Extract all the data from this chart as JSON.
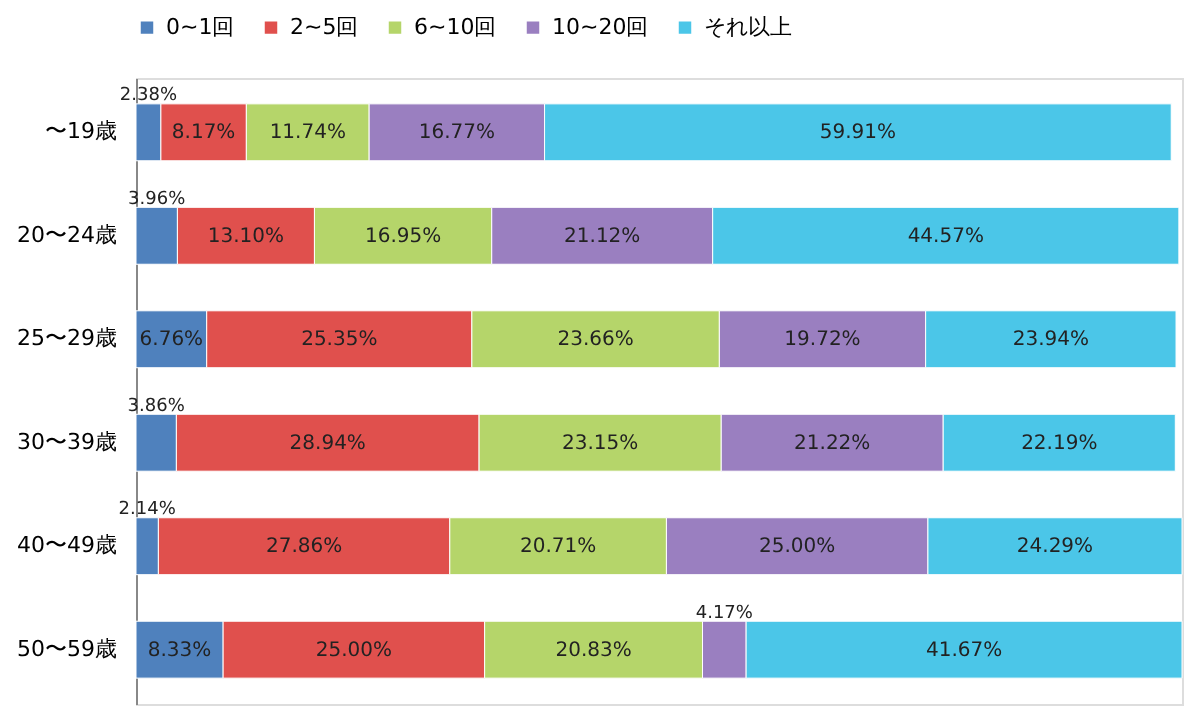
{
  "chart_data": {
    "type": "bar",
    "orientation": "horizontal",
    "stacked": true,
    "legend": "top",
    "grid": false,
    "categories": [
      "〜19歳",
      "20〜24歳",
      "25〜29歳",
      "30〜39歳",
      "40〜49歳",
      "50〜59歳"
    ],
    "series": [
      {
        "name": "0~1回",
        "color": "#4f81bd",
        "values": [
          2.38,
          3.96,
          6.76,
          3.86,
          2.14,
          8.33
        ],
        "value_labels": [
          "2.38%",
          "3.96%",
          "6.76%",
          "3.86%",
          "2.14%",
          "8.33%"
        ]
      },
      {
        "name": "2~5回",
        "color": "#e0504d",
        "values": [
          8.17,
          13.1,
          25.35,
          28.94,
          27.86,
          25.0
        ],
        "value_labels": [
          "8.17%",
          "13.10%",
          "25.35%",
          "28.94%",
          "27.86%",
          "25.00%"
        ]
      },
      {
        "name": "6~10回",
        "color": "#b5d56a",
        "values": [
          11.74,
          16.95,
          23.66,
          23.15,
          20.71,
          20.83
        ],
        "value_labels": [
          "11.74%",
          "16.95%",
          "23.66%",
          "23.15%",
          "20.71%",
          "20.83%"
        ]
      },
      {
        "name": "10~20回",
        "color": "#9a7fc0",
        "values": [
          16.77,
          21.12,
          19.72,
          21.22,
          25.0,
          4.17
        ],
        "value_labels": [
          "16.77%",
          "21.12%",
          "19.72%",
          "21.22%",
          "25.00%",
          "4.17%"
        ]
      },
      {
        "name": "それ以上",
        "color": "#4bc6e8",
        "values": [
          59.91,
          44.57,
          23.94,
          22.19,
          24.29,
          41.67
        ],
        "value_labels": [
          "59.91%",
          "44.57%",
          "23.94%",
          "22.19%",
          "24.29%",
          "41.67%"
        ]
      }
    ]
  }
}
